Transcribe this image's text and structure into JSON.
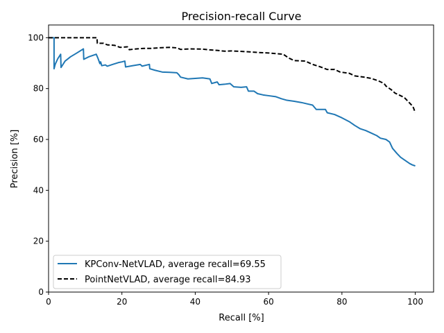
{
  "chart_data": {
    "type": "line",
    "title": "Precision-recall Curve",
    "xlabel": "Recall [%]",
    "ylabel": "Precision [%]",
    "xlim": [
      0,
      105
    ],
    "ylim": [
      0,
      105
    ],
    "xticks": [
      0,
      20,
      40,
      60,
      80,
      100
    ],
    "yticks": [
      0,
      20,
      40,
      60,
      80,
      100
    ],
    "grid": false,
    "legend_position": "lower-left",
    "series": [
      {
        "name": "KPConv-NetVLAD, average recall=69.55",
        "color": "#1f77b4",
        "style": "solid",
        "points": [
          [
            0.0,
            100.0
          ],
          [
            1.5,
            100.0
          ],
          [
            1.5,
            87.8
          ],
          [
            1.8,
            89.5
          ],
          [
            2.5,
            91.7
          ],
          [
            3.3,
            93.5
          ],
          [
            3.4,
            88.3
          ],
          [
            4.5,
            90.8
          ],
          [
            6.0,
            92.5
          ],
          [
            7.5,
            93.8
          ],
          [
            9.5,
            95.6
          ],
          [
            9.6,
            91.5
          ],
          [
            11.0,
            92.5
          ],
          [
            13.0,
            93.5
          ],
          [
            13.5,
            91.8
          ],
          [
            14.0,
            89.8
          ],
          [
            14.2,
            90.5
          ],
          [
            14.5,
            89.0
          ],
          [
            15.5,
            89.3
          ],
          [
            16.0,
            88.8
          ],
          [
            17.5,
            89.5
          ],
          [
            19.0,
            90.2
          ],
          [
            20.0,
            90.5
          ],
          [
            20.8,
            90.8
          ],
          [
            21.0,
            88.5
          ],
          [
            23.0,
            89.0
          ],
          [
            25.0,
            89.5
          ],
          [
            25.5,
            88.8
          ],
          [
            27.5,
            89.5
          ],
          [
            27.6,
            87.8
          ],
          [
            29.0,
            87.2
          ],
          [
            31.0,
            86.5
          ],
          [
            33.0,
            86.4
          ],
          [
            35.0,
            86.2
          ],
          [
            35.5,
            85.5
          ],
          [
            36.0,
            84.5
          ],
          [
            38.0,
            83.8
          ],
          [
            40.0,
            84.0
          ],
          [
            42.0,
            84.2
          ],
          [
            44.0,
            83.8
          ],
          [
            44.5,
            82.0
          ],
          [
            46.0,
            82.6
          ],
          [
            46.5,
            81.5
          ],
          [
            48.0,
            81.7
          ],
          [
            49.5,
            82.0
          ],
          [
            50.5,
            80.7
          ],
          [
            52.5,
            80.5
          ],
          [
            54.0,
            80.7
          ],
          [
            54.5,
            79.0
          ],
          [
            56.0,
            79.0
          ],
          [
            57.0,
            78.0
          ],
          [
            58.5,
            77.5
          ],
          [
            60.0,
            77.2
          ],
          [
            62.0,
            76.8
          ],
          [
            63.5,
            76.0
          ],
          [
            65.0,
            75.4
          ],
          [
            67.0,
            75.0
          ],
          [
            69.0,
            74.5
          ],
          [
            70.5,
            74.0
          ],
          [
            72.0,
            73.5
          ],
          [
            73.0,
            71.8
          ],
          [
            75.5,
            71.8
          ],
          [
            76.0,
            70.5
          ],
          [
            78.0,
            69.8
          ],
          [
            80.0,
            68.5
          ],
          [
            82.0,
            67.0
          ],
          [
            83.5,
            65.5
          ],
          [
            85.0,
            64.2
          ],
          [
            86.5,
            63.5
          ],
          [
            88.0,
            62.5
          ],
          [
            89.5,
            61.5
          ],
          [
            90.5,
            60.5
          ],
          [
            92.0,
            60.0
          ],
          [
            93.0,
            59.0
          ],
          [
            93.8,
            56.5
          ],
          [
            95.0,
            54.5
          ],
          [
            96.0,
            53.0
          ],
          [
            97.5,
            51.5
          ],
          [
            98.5,
            50.5
          ],
          [
            99.2,
            50.0
          ],
          [
            100.0,
            49.6
          ]
        ]
      },
      {
        "name": "PointNetVLAD, average recall=84.93",
        "color": "#000000",
        "style": "dashed",
        "points": [
          [
            0.0,
            100.0
          ],
          [
            13.2,
            100.0
          ],
          [
            13.3,
            97.8
          ],
          [
            15.0,
            97.8
          ],
          [
            16.0,
            97.2
          ],
          [
            18.0,
            97.0
          ],
          [
            19.5,
            96.2
          ],
          [
            21.5,
            96.4
          ],
          [
            22.0,
            95.3
          ],
          [
            24.0,
            95.6
          ],
          [
            26.0,
            95.8
          ],
          [
            28.0,
            95.8
          ],
          [
            30.0,
            96.0
          ],
          [
            33.0,
            96.2
          ],
          [
            35.0,
            96.0
          ],
          [
            36.0,
            95.4
          ],
          [
            38.5,
            95.6
          ],
          [
            42.0,
            95.5
          ],
          [
            44.0,
            95.2
          ],
          [
            46.0,
            95.0
          ],
          [
            48.0,
            94.7
          ],
          [
            50.0,
            94.8
          ],
          [
            54.0,
            94.5
          ],
          [
            57.0,
            94.2
          ],
          [
            60.0,
            94.0
          ],
          [
            64.0,
            93.5
          ],
          [
            65.5,
            92.0
          ],
          [
            67.0,
            91.0
          ],
          [
            70.0,
            90.8
          ],
          [
            72.0,
            89.5
          ],
          [
            74.0,
            88.6
          ],
          [
            76.0,
            87.5
          ],
          [
            78.0,
            87.5
          ],
          [
            79.5,
            86.5
          ],
          [
            82.0,
            86.0
          ],
          [
            83.5,
            85.0
          ],
          [
            86.0,
            84.5
          ],
          [
            88.0,
            84.0
          ],
          [
            90.0,
            83.0
          ],
          [
            91.5,
            82.0
          ],
          [
            92.0,
            81.0
          ],
          [
            93.5,
            79.5
          ],
          [
            94.5,
            78.2
          ],
          [
            96.0,
            77.2
          ],
          [
            97.0,
            76.5
          ],
          [
            98.0,
            75.0
          ],
          [
            99.0,
            73.5
          ],
          [
            99.5,
            72.5
          ],
          [
            100.0,
            70.5
          ]
        ]
      }
    ]
  }
}
